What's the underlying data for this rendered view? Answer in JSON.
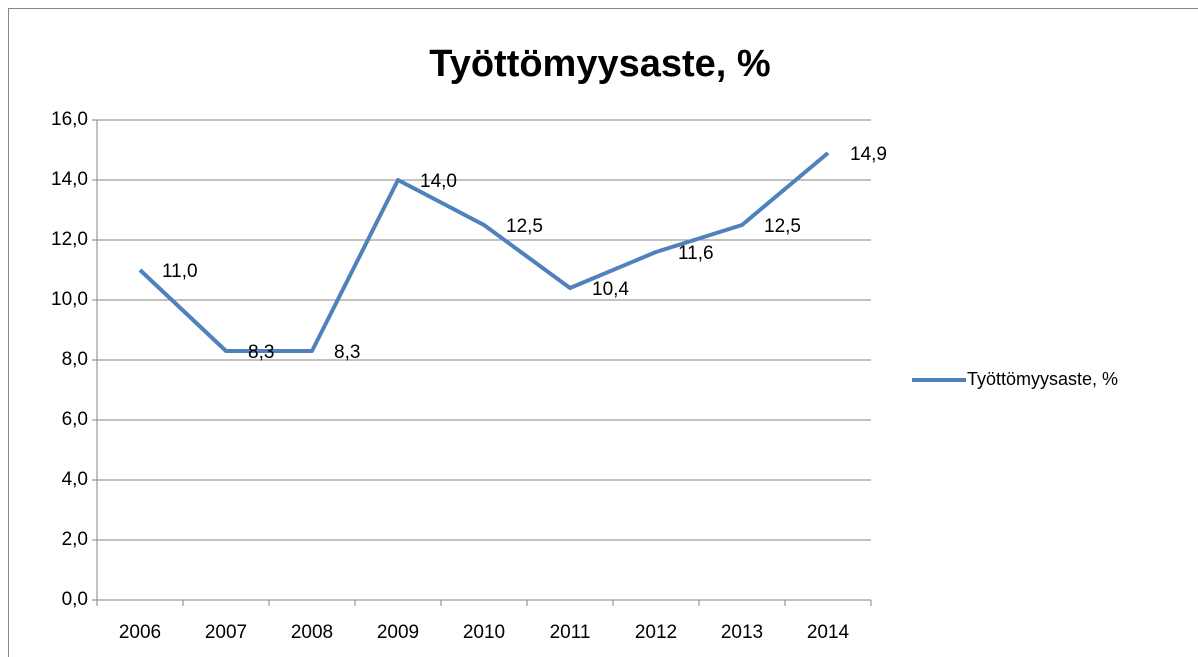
{
  "chart_data": {
    "type": "line",
    "title": "Työttömyysaste, %",
    "categories": [
      "2006",
      "2007",
      "2008",
      "2009",
      "2010",
      "2011",
      "2012",
      "2013",
      "2014"
    ],
    "series": [
      {
        "name": "Työttömyysaste, %",
        "color": "#4f81bd",
        "values": [
          11.0,
          8.3,
          8.3,
          14.0,
          12.5,
          10.4,
          11.6,
          12.5,
          14.9
        ],
        "value_labels": [
          "11,0",
          "8,3",
          "8,3",
          "14,0",
          "12,5",
          "10,4",
          "11,6",
          "12,5",
          "14,9"
        ]
      }
    ],
    "ylim": [
      0,
      16
    ],
    "yticks": [
      {
        "value": 0,
        "label": "0,0"
      },
      {
        "value": 2,
        "label": "2,0"
      },
      {
        "value": 4,
        "label": "4,0"
      },
      {
        "value": 6,
        "label": "6,0"
      },
      {
        "value": 8,
        "label": "8,0"
      },
      {
        "value": 10,
        "label": "10,0"
      },
      {
        "value": 12,
        "label": "12,0"
      },
      {
        "value": 14,
        "label": "14,0"
      },
      {
        "value": 16,
        "label": "16,0"
      }
    ],
    "grid": true,
    "legend": "right"
  }
}
